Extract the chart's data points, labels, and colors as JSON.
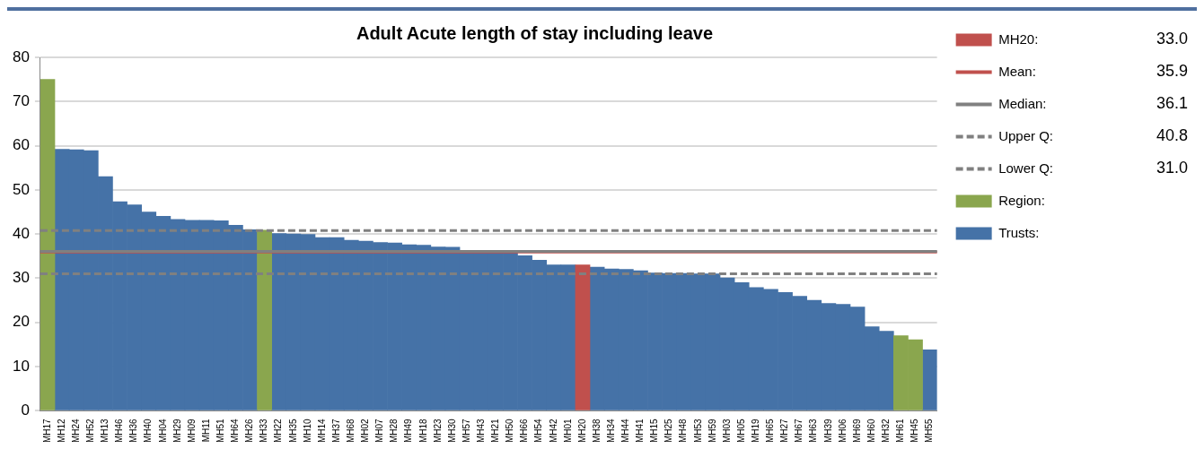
{
  "chart_data": {
    "type": "bar",
    "title": "Adult Acute length of stay including leave",
    "categories": [
      "MH17",
      "MH12",
      "MH24",
      "MH52",
      "MH13",
      "MH46",
      "MH36",
      "MH40",
      "MH04",
      "MH29",
      "MH09",
      "MH11",
      "MH51",
      "MH64",
      "MH26",
      "MH33",
      "MH22",
      "MH35",
      "MH10",
      "MH14",
      "MH37",
      "MH68",
      "MH02",
      "MH07",
      "MH28",
      "MH49",
      "MH18",
      "MH23",
      "MH30",
      "MH57",
      "MH43",
      "MH21",
      "MH50",
      "MH66",
      "MH54",
      "MH42",
      "MH01",
      "MH20",
      "MH38",
      "MH34",
      "MH44",
      "MH41",
      "MH15",
      "MH25",
      "MH48",
      "MH53",
      "MH59",
      "MH03",
      "MH05",
      "MH19",
      "MH65",
      "MH27",
      "MH67",
      "MH63",
      "MH39",
      "MH06",
      "MH69",
      "MH60",
      "MH32",
      "MH61",
      "MH45",
      "MH55"
    ],
    "series": [
      {
        "name": "MH20:",
        "color": "#c0504d",
        "values": [
          null,
          null,
          null,
          null,
          null,
          null,
          null,
          null,
          null,
          null,
          null,
          null,
          null,
          null,
          null,
          null,
          null,
          null,
          null,
          null,
          null,
          null,
          null,
          null,
          null,
          null,
          null,
          null,
          null,
          null,
          null,
          null,
          null,
          null,
          null,
          null,
          null,
          33.0,
          null,
          null,
          null,
          null,
          null,
          null,
          null,
          null,
          null,
          null,
          null,
          null,
          null,
          null,
          null,
          null,
          null,
          null,
          null,
          null,
          null,
          null,
          null,
          null
        ]
      },
      {
        "name": "Region:",
        "color": "#8aa64e",
        "values": [
          75,
          null,
          null,
          null,
          null,
          null,
          null,
          null,
          null,
          null,
          null,
          null,
          null,
          null,
          null,
          40.9,
          null,
          null,
          null,
          null,
          null,
          null,
          null,
          null,
          null,
          null,
          null,
          null,
          null,
          null,
          null,
          null,
          null,
          null,
          null,
          null,
          null,
          null,
          null,
          null,
          null,
          null,
          null,
          null,
          null,
          null,
          null,
          null,
          null,
          null,
          null,
          null,
          null,
          null,
          null,
          null,
          null,
          null,
          null,
          17.0,
          16.1,
          null
        ]
      },
      {
        "name": "Trusts:",
        "color": "#4572a7",
        "values": [
          null,
          59.2,
          59.1,
          58.9,
          53.0,
          47.3,
          46.6,
          45.0,
          44.0,
          43.3,
          43.1,
          43.1,
          43.0,
          42.0,
          41.0,
          null,
          40.1,
          40.0,
          39.9,
          39.2,
          39.2,
          38.6,
          38.4,
          38.1,
          38.0,
          37.6,
          37.5,
          37.1,
          37.0,
          36.3,
          36.2,
          36.1,
          36.0,
          35.1,
          34.1,
          33.0,
          33.0,
          null,
          32.5,
          32.1,
          32.0,
          31.7,
          31.2,
          31.1,
          31.1,
          31.0,
          31.0,
          30.1,
          29.0,
          27.9,
          27.5,
          26.8,
          25.9,
          25.0,
          24.3,
          24.1,
          23.5,
          19.0,
          18.0,
          null,
          null,
          13.8
        ]
      }
    ],
    "stacked": true,
    "ylim": [
      0,
      80
    ],
    "yticks": [
      0,
      10,
      20,
      30,
      40,
      50,
      60,
      70,
      80
    ],
    "grid": "y",
    "legend": "right",
    "annotations": [
      "33.0",
      "35.9",
      "36.1",
      "40.8",
      "31.0"
    ],
    "ref_lines": [
      {
        "axis": "y",
        "value": 35.9,
        "label": "Mean:",
        "color": "#c0504d",
        "line_style": "solid"
      },
      {
        "axis": "y",
        "value": 36.1,
        "label": "Median:",
        "color": "#808080",
        "line_style": "solid"
      },
      {
        "axis": "y",
        "value": 40.8,
        "label": "Upper Q:",
        "color": "#808080",
        "line_style": "dashed"
      },
      {
        "axis": "y",
        "value": 31.0,
        "label": "Lower Q:",
        "color": "#808080",
        "line_style": "dashed"
      }
    ]
  }
}
